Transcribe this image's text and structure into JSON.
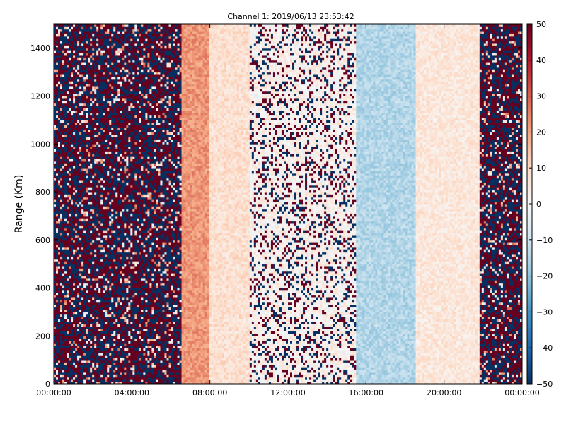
{
  "chart_data": {
    "type": "heatmap",
    "title": "Channel 1: 2019/06/13 23:53:42",
    "xlabel": "",
    "ylabel": "Range (Km)",
    "x_ticks": [
      "00:00:00",
      "04:00:00",
      "08:00:00",
      "12:00:00",
      "16:00:00",
      "20:00:00",
      "00:00:00"
    ],
    "x_range_hours": [
      0,
      24
    ],
    "y_ticks": [
      "0",
      "200",
      "400",
      "600",
      "800",
      "1000",
      "1200",
      "1400"
    ],
    "ylim": [
      0,
      1500
    ],
    "colorbar": {
      "colormap": "RdBu_r",
      "range": [
        -50,
        50
      ],
      "ticks": [
        "50",
        "40",
        "30",
        "20",
        "10",
        "0",
        "−10",
        "−20",
        "−30",
        "−40",
        "−50"
      ],
      "low_color": "#053061",
      "mid_color": "#f7f7f7",
      "high_color": "#67001f"
    },
    "grid": false,
    "series": [
      {
        "hours": [
          0,
          6.6
        ],
        "pattern": "noise",
        "mean_value": 0
      },
      {
        "hours": [
          6.6,
          8.0
        ],
        "pattern": "band",
        "mean_value": 22
      },
      {
        "hours": [
          8.0,
          10.0
        ],
        "pattern": "band",
        "mean_value": 8
      },
      {
        "hours": [
          10.0,
          15.5
        ],
        "pattern": "sparse-noise",
        "mean_value": 2
      },
      {
        "hours": [
          15.5,
          18.5
        ],
        "pattern": "band",
        "mean_value": -15
      },
      {
        "hours": [
          18.5,
          21.8
        ],
        "pattern": "band",
        "mean_value": 6
      },
      {
        "hours": [
          21.8,
          24
        ],
        "pattern": "noise",
        "mean_value": 0
      }
    ]
  }
}
